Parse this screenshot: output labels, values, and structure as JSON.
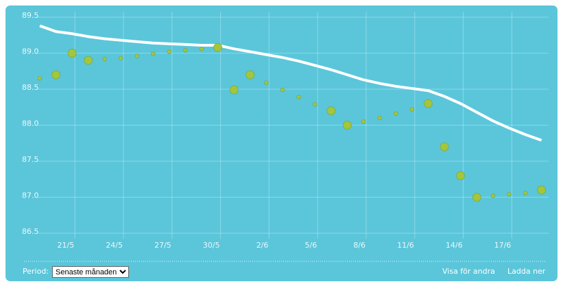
{
  "chart_data": {
    "type": "line",
    "categories": [
      null,
      null,
      "21/5",
      null,
      null,
      "24/5",
      null,
      null,
      "27/5",
      null,
      null,
      "30/5",
      null,
      null,
      "2/6",
      null,
      null,
      "5/6",
      null,
      null,
      "8/6",
      null,
      null,
      "11/6",
      null,
      null,
      "14/6",
      null,
      null,
      "17/6",
      null,
      null
    ],
    "series": [
      {
        "style": "line",
        "color": "#ffffff",
        "values": [
          89.38,
          89.3,
          89.27,
          89.23,
          89.2,
          89.18,
          89.16,
          89.14,
          89.13,
          89.12,
          89.11,
          89.11,
          89.06,
          89.02,
          88.98,
          88.94,
          88.89,
          88.83,
          88.77,
          88.7,
          88.63,
          88.58,
          88.54,
          88.51,
          88.48,
          88.4,
          88.3,
          88.18,
          88.06,
          87.96,
          87.87,
          87.79
        ]
      },
      {
        "style": "large-dot",
        "color": "#a3c63c",
        "values": [
          null,
          88.7,
          89.0,
          88.9,
          null,
          null,
          null,
          null,
          null,
          null,
          null,
          89.08,
          88.49,
          88.7,
          null,
          null,
          null,
          null,
          88.2,
          88.0,
          null,
          null,
          null,
          null,
          88.3,
          87.7,
          87.3,
          87.0,
          null,
          null,
          null,
          87.1
        ]
      },
      {
        "style": "small-dot",
        "color": "#a3c63c",
        "values": [
          88.65,
          null,
          null,
          null,
          88.92,
          88.93,
          88.96,
          88.99,
          89.02,
          89.04,
          89.06,
          null,
          null,
          null,
          88.59,
          88.49,
          88.39,
          88.29,
          null,
          null,
          88.05,
          88.1,
          88.16,
          88.22,
          null,
          null,
          null,
          null,
          87.02,
          87.04,
          87.06,
          null
        ]
      }
    ],
    "ylim": [
      86.5,
      89.5
    ],
    "yticks": [
      {
        "value": 86.5,
        "label": "86.5"
      },
      {
        "value": 87,
        "label": "87.0"
      },
      {
        "value": 87.5,
        "label": "87.5"
      },
      {
        "value": 88,
        "label": "88.0"
      },
      {
        "value": 88.5,
        "label": "88.5"
      },
      {
        "value": 89,
        "label": "89.0"
      },
      {
        "value": 89.5,
        "label": "89.5"
      }
    ],
    "grid": true
  },
  "controls": {
    "period_label": "Period:",
    "period_value": "Senaste månaden",
    "share": "Visa för andra",
    "download": "Ladda ner"
  }
}
